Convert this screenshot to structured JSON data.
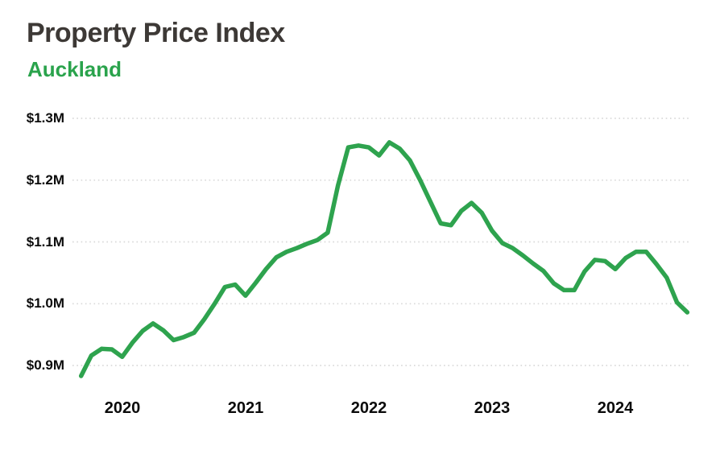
{
  "header": {
    "title": "Property Price Index",
    "subtitle": "Auckland"
  },
  "colors": {
    "line": "#2EA34E",
    "title": "#3D3936",
    "subtitle": "#2AA34C",
    "grid": "#D9D9D9",
    "axis_label": "#0B0B0B",
    "background": "#FFFFFF"
  },
  "chart_data": {
    "type": "line",
    "title": "Property Price Index",
    "subtitle": "Auckland",
    "y_unit": "NZD millions",
    "x_unit": "month",
    "legend": "none",
    "grid": "horizontal-dotted",
    "ylim": [
      0.86,
      1.32
    ],
    "yticks": [
      {
        "label": "$1.3M",
        "value": 1.3
      },
      {
        "label": "$1.2M",
        "value": 1.2
      },
      {
        "label": "$1.1M",
        "value": 1.1
      },
      {
        "label": "$1.0M",
        "value": 1.0
      },
      {
        "label": "$0.9M",
        "value": 0.9
      }
    ],
    "xticks": [
      {
        "label": "2020",
        "month": "2020-01"
      },
      {
        "label": "2021",
        "month": "2021-01"
      },
      {
        "label": "2022",
        "month": "2022-01"
      },
      {
        "label": "2023",
        "month": "2023-01"
      },
      {
        "label": "2024",
        "month": "2024-01"
      }
    ],
    "series": [
      {
        "name": "Auckland",
        "color": "#2EA34E",
        "x": [
          "2019-09",
          "2019-10",
          "2019-11",
          "2019-12",
          "2020-01",
          "2020-02",
          "2020-03",
          "2020-04",
          "2020-05",
          "2020-06",
          "2020-07",
          "2020-08",
          "2020-09",
          "2020-10",
          "2020-11",
          "2020-12",
          "2021-01",
          "2021-02",
          "2021-03",
          "2021-04",
          "2021-05",
          "2021-06",
          "2021-07",
          "2021-08",
          "2021-09",
          "2021-10",
          "2021-11",
          "2021-12",
          "2022-01",
          "2022-02",
          "2022-03",
          "2022-04",
          "2022-05",
          "2022-06",
          "2022-07",
          "2022-08",
          "2022-09",
          "2022-10",
          "2022-11",
          "2022-12",
          "2023-01",
          "2023-02",
          "2023-03",
          "2023-04",
          "2023-05",
          "2023-06",
          "2023-07",
          "2023-08",
          "2023-09",
          "2023-10",
          "2023-11",
          "2023-12",
          "2024-01",
          "2024-02",
          "2024-03",
          "2024-04",
          "2024-05",
          "2024-06",
          "2024-07",
          "2024-08"
        ],
        "values": [
          0.883,
          0.916,
          0.927,
          0.926,
          0.914,
          0.937,
          0.956,
          0.968,
          0.957,
          0.941,
          0.946,
          0.953,
          0.975,
          1.0,
          1.027,
          1.031,
          1.013,
          1.034,
          1.056,
          1.075,
          1.084,
          1.09,
          1.097,
          1.103,
          1.115,
          1.191,
          1.253,
          1.256,
          1.253,
          1.24,
          1.261,
          1.251,
          1.232,
          1.2,
          1.165,
          1.13,
          1.127,
          1.15,
          1.163,
          1.147,
          1.118,
          1.098,
          1.09,
          1.078,
          1.065,
          1.053,
          1.033,
          1.022,
          1.022,
          1.052,
          1.071,
          1.069,
          1.056,
          1.074,
          1.084,
          1.084,
          1.064,
          1.042,
          1.002,
          0.986
        ]
      }
    ]
  }
}
